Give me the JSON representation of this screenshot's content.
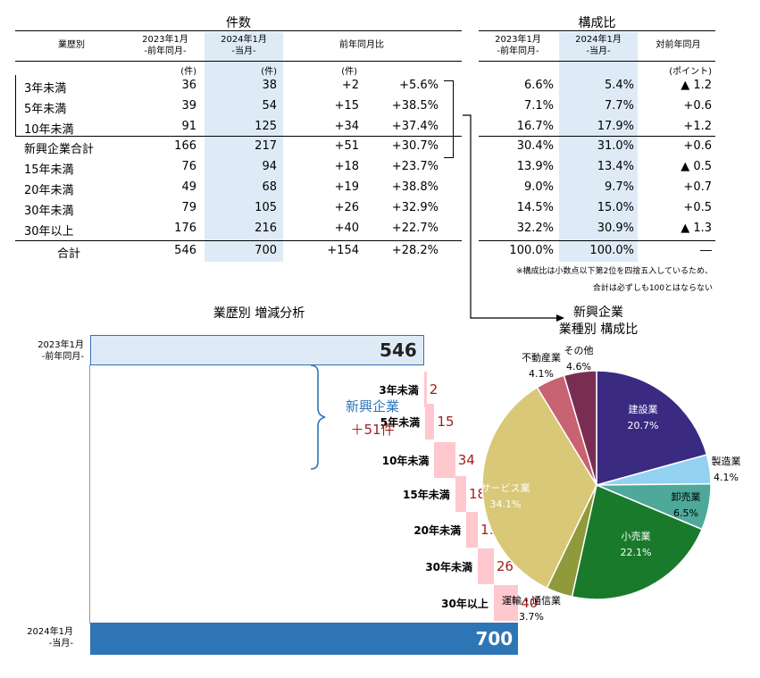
{
  "counts_table": {
    "title": "件数",
    "headers": {
      "category": "業歴別",
      "prev_line1": "2023年1月",
      "prev_line2": "-前年同月-",
      "cur_line1": "2024年1月",
      "cur_line2": "-当月-",
      "yoy": "前年同月比"
    },
    "units": {
      "prev": "(件)",
      "cur": "(件)",
      "diff": "(件)"
    },
    "rows": [
      {
        "label": "3年未満",
        "prev": "36",
        "cur": "38",
        "diff": "+2",
        "pct": "+5.6%"
      },
      {
        "label": "5年未満",
        "prev": "39",
        "cur": "54",
        "diff": "+15",
        "pct": "+38.5%"
      },
      {
        "label": "10年未満",
        "prev": "91",
        "cur": "125",
        "diff": "+34",
        "pct": "+37.4%"
      },
      {
        "label": "新興企業合計",
        "prev": "166",
        "cur": "217",
        "diff": "+51",
        "pct": "+30.7%"
      },
      {
        "label": "15年未満",
        "prev": "76",
        "cur": "94",
        "diff": "+18",
        "pct": "+23.7%"
      },
      {
        "label": "20年未満",
        "prev": "49",
        "cur": "68",
        "diff": "+19",
        "pct": "+38.8%"
      },
      {
        "label": "30年未満",
        "prev": "79",
        "cur": "105",
        "diff": "+26",
        "pct": "+32.9%"
      },
      {
        "label": "30年以上",
        "prev": "176",
        "cur": "216",
        "diff": "+40",
        "pct": "+22.7%"
      },
      {
        "label": "合計",
        "prev": "546",
        "cur": "700",
        "diff": "+154",
        "pct": "+28.2%"
      }
    ]
  },
  "composition_table": {
    "title": "構成比",
    "headers": {
      "prev_line1": "2023年1月",
      "prev_line2": "-前年同月-",
      "cur_line1": "2024年1月",
      "cur_line2": "-当月-",
      "yoy": "対前年同月"
    },
    "unit": "(ポイント)",
    "rows": [
      {
        "prev": "6.6%",
        "cur": "5.4%",
        "diff": "▲ 1.2"
      },
      {
        "prev": "7.1%",
        "cur": "7.7%",
        "diff": "+0.6"
      },
      {
        "prev": "16.7%",
        "cur": "17.9%",
        "diff": "+1.2"
      },
      {
        "prev": "30.4%",
        "cur": "31.0%",
        "diff": "+0.6"
      },
      {
        "prev": "13.9%",
        "cur": "13.4%",
        "diff": "▲ 0.5"
      },
      {
        "prev": "9.0%",
        "cur": "9.7%",
        "diff": "+0.7"
      },
      {
        "prev": "14.5%",
        "cur": "15.0%",
        "diff": "+0.5"
      },
      {
        "prev": "32.2%",
        "cur": "30.9%",
        "diff": "▲ 1.3"
      },
      {
        "prev": "100.0%",
        "cur": "100.0%",
        "diff": "―"
      }
    ],
    "note_line1": "※構成比は小数点以下第2位を四捨五入しているため、",
    "note_line2": "合計は必ずしも100とはならない"
  },
  "chart_data": [
    {
      "type": "bar",
      "subtype": "waterfall",
      "title": "業歴別 増減分析",
      "start": {
        "label_line1": "2023年1月",
        "label_line2": "-前年同月-",
        "value": 546
      },
      "end": {
        "label_line1": "2024年1月",
        "label_line2": "-当月-",
        "value": 700
      },
      "categories": [
        "3年未満",
        "5年未満",
        "10年未満",
        "15年未満",
        "20年未満",
        "30年未満",
        "30年以上"
      ],
      "values": [
        2,
        15,
        34,
        18,
        19,
        26,
        40
      ],
      "annotation_line1": "新興企業",
      "annotation_line2": "＋51件",
      "colors": {
        "start": "#deebf7",
        "end": "#2e75b6",
        "step": "#ffc7ce",
        "value_text": "#a02020",
        "annotation": "#2e75b6"
      }
    },
    {
      "type": "pie",
      "title_line1": "新興企業",
      "title_line2": "業種別  構成比",
      "categories": [
        "建設業",
        "製造業",
        "卸売業",
        "小売業",
        "運輸・通信業",
        "サービス業",
        "不動産業",
        "その他"
      ],
      "values": [
        20.7,
        4.1,
        6.5,
        22.1,
        3.7,
        34.1,
        4.1,
        4.6
      ],
      "labels": [
        "20.7%",
        "4.1%",
        "6.5%",
        "22.1%",
        "3.7%",
        "34.1%",
        "4.1%",
        "4.6%"
      ],
      "colors": [
        "#3a2a82",
        "#92d1f0",
        "#4ea99a",
        "#197a2c",
        "#8f9a3a",
        "#d8c878",
        "#c76373",
        "#7a2d52"
      ]
    }
  ]
}
